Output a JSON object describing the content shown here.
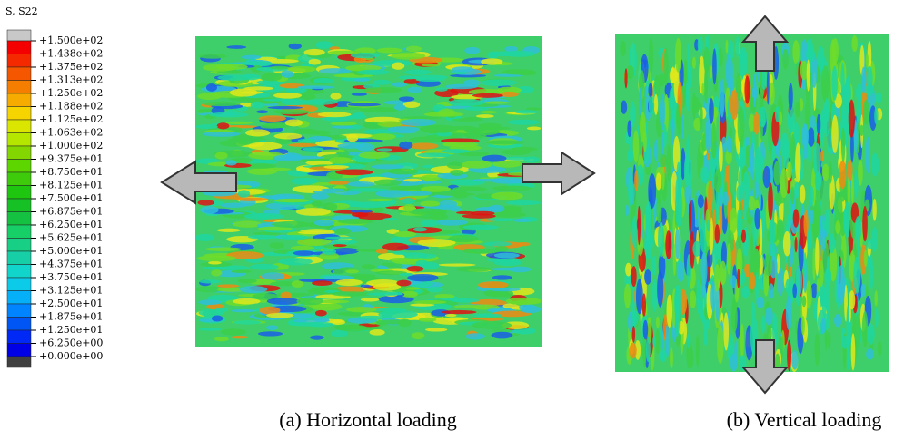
{
  "legend": {
    "title": "S, S22",
    "labels": [
      "+1.500e+02",
      "+1.438e+02",
      "+1.375e+02",
      "+1.313e+02",
      "+1.250e+02",
      "+1.188e+02",
      "+1.125e+02",
      "+1.063e+02",
      "+1.000e+02",
      "+9.375e+01",
      "+8.750e+01",
      "+8.125e+01",
      "+7.500e+01",
      "+6.875e+01",
      "+6.250e+01",
      "+5.625e+01",
      "+5.000e+01",
      "+4.375e+01",
      "+3.750e+01",
      "+3.125e+01",
      "+2.500e+01",
      "+1.875e+01",
      "+1.250e+01",
      "+6.250e+00",
      "+0.000e+00"
    ],
    "band_colors": [
      "#c8c8c8",
      "hsl(0,100%,48%)",
      "hsl(10,100%,48%)",
      "hsl(21,100%,48%)",
      "hsl(31,100%,48%)",
      "hsl(42,100%,48%)",
      "hsl(52,100%,48%)",
      "hsl(63,100%,45%)",
      "hsl(73,100%,45%)",
      "hsl(83,100%,42%)",
      "hsl(94,100%,42%)",
      "hsl(104,90%,42%)",
      "hsl(115,85%,42%)",
      "hsl(125,80%,42%)",
      "hsl(135,80%,42%)",
      "hsl(146,80%,45%)",
      "hsl(156,80%,45%)",
      "hsl(167,80%,45%)",
      "hsl(177,85%,45%)",
      "hsl(188,90%,48%)",
      "hsl(198,95%,50%)",
      "hsl(209,100%,50%)",
      "hsl(219,100%,48%)",
      "hsl(230,100%,48%)",
      "hsl(240,100%,45%)",
      "#404040"
    ]
  },
  "panels": [
    {
      "caption": "(a)  Horizontal loading"
    },
    {
      "caption": "(b)  Vertical loading"
    }
  ]
}
